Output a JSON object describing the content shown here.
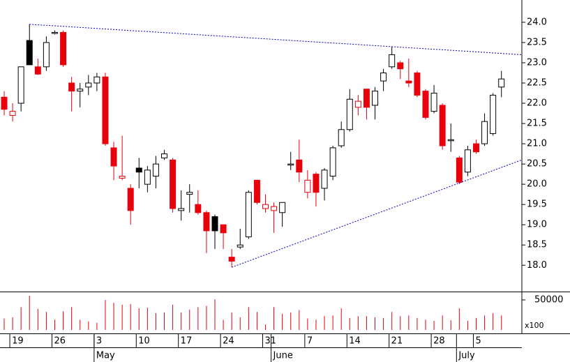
{
  "chart_data": {
    "type": "candlestick",
    "categories": [
      null,
      "19",
      null,
      null,
      null,
      null,
      "26",
      null,
      null,
      null,
      null,
      "3",
      null,
      null,
      null,
      null,
      "10",
      null,
      null,
      null,
      null,
      "17",
      null,
      null,
      null,
      null,
      "24",
      null,
      null,
      null,
      null,
      "31",
      null,
      null,
      null,
      null,
      "7",
      null,
      null,
      null,
      null,
      "14",
      null,
      null,
      null,
      null,
      "21",
      null,
      null,
      null,
      null,
      "28",
      null,
      null,
      null,
      null,
      "5",
      null,
      null,
      null
    ],
    "months": [
      null,
      null,
      null,
      null,
      null,
      null,
      null,
      null,
      null,
      null,
      null,
      "May",
      null,
      null,
      null,
      null,
      null,
      null,
      null,
      null,
      null,
      null,
      null,
      null,
      null,
      null,
      null,
      null,
      null,
      null,
      null,
      null,
      "June",
      null,
      null,
      null,
      null,
      null,
      null,
      null,
      null,
      null,
      null,
      null,
      null,
      null,
      null,
      null,
      null,
      null,
      null,
      null,
      null,
      null,
      "July",
      null,
      null,
      null,
      null,
      null
    ],
    "open": [
      22.15,
      21.7,
      22.0,
      23.55,
      22.9,
      22.9,
      23.75,
      23.75,
      22.5,
      22.3,
      22.4,
      22.5,
      22.65,
      20.9,
      20.15,
      19.9,
      20.4,
      20.0,
      20.2,
      20.65,
      20.6,
      19.35,
      19.75,
      19.5,
      19.3,
      19.2,
      19.0,
      18.2,
      18.45,
      18.7,
      20.1,
      19.4,
      19.35,
      19.3,
      20.5,
      20.6,
      19.8,
      20.25,
      19.9,
      20.2,
      20.95,
      21.35,
      21.9,
      22.35,
      21.95,
      22.55,
      22.9,
      23.0,
      22.55,
      22.75,
      22.3,
      21.8,
      21.95,
      21.1,
      20.65,
      20.3,
      21.0,
      21.0,
      21.25,
      22.4
    ],
    "high": [
      22.3,
      22.0,
      22.9,
      23.95,
      23.1,
      23.65,
      23.8,
      23.8,
      22.65,
      22.5,
      22.7,
      22.75,
      22.75,
      21.05,
      21.2,
      20.0,
      20.65,
      20.45,
      20.7,
      20.85,
      20.65,
      19.85,
      20.0,
      19.85,
      19.35,
      19.25,
      19.0,
      18.4,
      18.9,
      19.85,
      20.1,
      19.75,
      19.55,
      19.55,
      20.8,
      21.1,
      20.35,
      20.3,
      20.4,
      20.95,
      21.55,
      22.35,
      22.2,
      22.35,
      22.4,
      22.85,
      23.4,
      23.05,
      23.1,
      22.8,
      22.35,
      22.45,
      22.0,
      21.5,
      20.7,
      20.95,
      21.1,
      21.75,
      22.25,
      22.8
    ],
    "low": [
      21.7,
      21.55,
      21.8,
      22.95,
      22.7,
      22.8,
      23.7,
      22.9,
      21.8,
      21.9,
      22.2,
      22.3,
      20.95,
      20.1,
      20.1,
      19.0,
      19.9,
      19.8,
      19.9,
      20.6,
      19.3,
      19.1,
      19.3,
      19.25,
      18.3,
      18.4,
      18.4,
      17.95,
      18.4,
      18.65,
      19.5,
      19.3,
      18.8,
      18.95,
      20.35,
      20.05,
      19.65,
      19.45,
      19.6,
      20.1,
      20.9,
      21.3,
      21.7,
      21.6,
      21.6,
      22.3,
      22.85,
      22.6,
      22.4,
      22.15,
      21.6,
      21.75,
      20.85,
      20.8,
      20.0,
      20.2,
      20.75,
      20.95,
      21.2,
      22.15
    ],
    "close": [
      21.85,
      21.8,
      22.9,
      22.95,
      22.72,
      23.5,
      23.75,
      22.95,
      22.3,
      22.35,
      22.5,
      22.65,
      21.0,
      20.45,
      20.2,
      19.35,
      20.3,
      20.35,
      20.5,
      20.75,
      19.4,
      19.4,
      19.8,
      19.3,
      18.85,
      18.85,
      18.8,
      18.1,
      18.5,
      19.8,
      19.55,
      19.5,
      19.45,
      19.55,
      20.5,
      20.3,
      20.1,
      19.8,
      20.35,
      20.9,
      21.35,
      22.1,
      22.05,
      21.9,
      22.3,
      22.75,
      23.2,
      22.85,
      22.5,
      22.2,
      21.65,
      22.25,
      20.95,
      21.1,
      20.05,
      20.85,
      20.8,
      21.55,
      22.2,
      22.6
    ],
    "volume": [
      19000,
      21000,
      38000,
      57000,
      35000,
      30000,
      17000,
      31000,
      38000,
      17000,
      14000,
      12000,
      50000,
      45000,
      42000,
      43000,
      36000,
      37000,
      28000,
      29000,
      42000,
      29000,
      34000,
      38000,
      40000,
      51000,
      17000,
      29000,
      21000,
      38000,
      30000,
      9000,
      38000,
      27000,
      29000,
      33000,
      19000,
      17000,
      23000,
      24000,
      36000,
      20000,
      23000,
      23000,
      21000,
      20000,
      30000,
      23000,
      24000,
      20000,
      17000,
      15000,
      24000,
      16000,
      36000,
      15000,
      20000,
      24000,
      28000,
      24000
    ],
    "ylim": [
      17.35,
      24.55
    ],
    "yticks": [
      {
        "value": 18,
        "label": "18.0"
      },
      {
        "value": 18.5,
        "label": "18.5"
      },
      {
        "value": 19,
        "label": "19.0"
      },
      {
        "value": 19.5,
        "label": "19.5"
      },
      {
        "value": 20,
        "label": "20.0"
      },
      {
        "value": 20.5,
        "label": "20.5"
      },
      {
        "value": 21,
        "label": "21.0"
      },
      {
        "value": 21.5,
        "label": "21.5"
      },
      {
        "value": 22,
        "label": "22.0"
      },
      {
        "value": 22.5,
        "label": "22.5"
      },
      {
        "value": 23,
        "label": "23.0"
      },
      {
        "value": 23.5,
        "label": "23.5"
      },
      {
        "value": 24,
        "label": "24.0"
      }
    ],
    "volume_ylim": [
      0,
      61600
    ],
    "volume_yticks": [
      50000
    ],
    "volume_unit_label": "x100",
    "down_color": "#e8000b",
    "up_color": "#000000",
    "volume_color": "#e8000b",
    "trendlines": [
      {
        "x": [
          3,
          61.4
        ],
        "y": [
          23.95,
          23.2
        ]
      },
      {
        "x": [
          27,
          61.4
        ],
        "y": [
          17.95,
          20.6
        ]
      }
    ],
    "trendline_color": "#0000cc"
  }
}
